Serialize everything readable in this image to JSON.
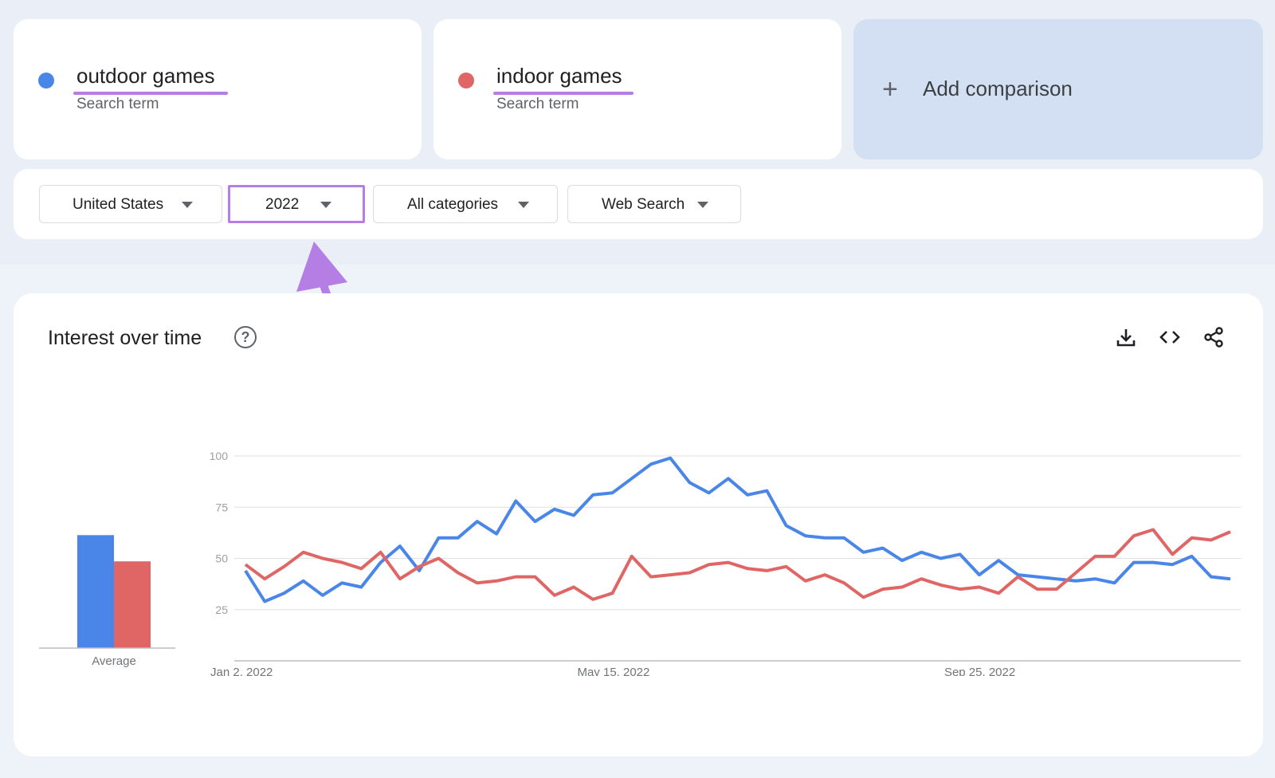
{
  "terms": [
    {
      "name": "outdoor games",
      "subtitle": "Search term",
      "color": "#4a86e8"
    },
    {
      "name": "indoor games",
      "subtitle": "Search term",
      "color": "#e06666"
    }
  ],
  "add_comparison": {
    "icon": "plus-icon",
    "label": "Add comparison"
  },
  "filters": {
    "region": "United States",
    "time": "2022",
    "category": "All categories",
    "search_type": "Web Search"
  },
  "chart_panel": {
    "title": "Interest over time",
    "icons": [
      "help-icon",
      "download-icon",
      "embed-code-icon",
      "share-icon"
    ]
  },
  "annotation": {
    "highlight_color": "#b47ee5"
  },
  "chart_data": [
    {
      "type": "bar",
      "categories": [
        "outdoor games",
        "indoor games"
      ],
      "values": [
        56,
        43
      ],
      "xlabel": "Average",
      "ylim": [
        0,
        100
      ],
      "colors": [
        "#4a86e8",
        "#e06666"
      ]
    },
    {
      "type": "line",
      "ylim": [
        0,
        100
      ],
      "yticks": [
        25,
        50,
        75,
        100
      ],
      "grid": true,
      "xticks": [
        "Jan 2, 2022",
        "May 15, 2022",
        "Sep 25, 2022"
      ],
      "xtick_index": [
        0,
        19,
        38
      ],
      "series": [
        {
          "name": "outdoor games",
          "color": "#4a86e8",
          "values": [
            44,
            29,
            33,
            39,
            32,
            38,
            36,
            48,
            56,
            44,
            60,
            60,
            68,
            62,
            78,
            68,
            74,
            71,
            81,
            82,
            89,
            96,
            99,
            87,
            82,
            89,
            81,
            83,
            66,
            61,
            60,
            60,
            53,
            55,
            49,
            53,
            50,
            52,
            42,
            49,
            42,
            41,
            40,
            39,
            40,
            38,
            48,
            48,
            47,
            51,
            41,
            40
          ]
        },
        {
          "name": "indoor games",
          "color": "#e06666",
          "values": [
            47,
            40,
            46,
            53,
            50,
            48,
            45,
            53,
            40,
            46,
            50,
            43,
            38,
            39,
            41,
            41,
            32,
            36,
            30,
            33,
            51,
            41,
            42,
            43,
            47,
            48,
            45,
            44,
            46,
            39,
            42,
            38,
            31,
            35,
            36,
            40,
            37,
            35,
            36,
            33,
            41,
            35,
            35,
            43,
            51,
            51,
            61,
            64,
            52,
            60,
            59,
            63
          ]
        }
      ]
    }
  ]
}
